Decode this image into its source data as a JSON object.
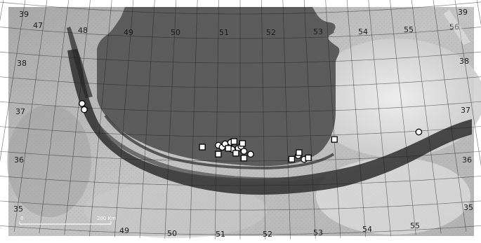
{
  "map": {
    "lon_labels_top": [
      "47",
      "48",
      "49",
      "50",
      "51",
      "52",
      "53",
      "54",
      "55",
      "56"
    ],
    "lon_labels_bottom": [
      "49",
      "50",
      "51",
      "52",
      "53",
      "54",
      "55"
    ],
    "lat_labels_left": [
      "39",
      "38",
      "37",
      "36",
      "35"
    ],
    "lat_labels_right": [
      "39",
      "38",
      "37",
      "36",
      "35"
    ],
    "scale": {
      "zero": "0",
      "dist": "200 Km"
    },
    "colors": {
      "sea": "#5c5c5c",
      "land_dark": "#2b2b2b",
      "land_light": "#bdbdbd",
      "desert": "#e6e6e6"
    },
    "markers": {
      "circles": [
        {
          "lon": 48.07,
          "lat": 37.08
        },
        {
          "lon": 48.13,
          "lat": 36.96
        },
        {
          "lon": 51.04,
          "lat": 36.32
        },
        {
          "lon": 51.12,
          "lat": 36.28
        },
        {
          "lon": 51.18,
          "lat": 36.35
        },
        {
          "lon": 51.3,
          "lat": 36.38
        },
        {
          "lon": 51.33,
          "lat": 36.24
        },
        {
          "lon": 51.46,
          "lat": 36.26
        },
        {
          "lon": 51.52,
          "lat": 36.3
        },
        {
          "lon": 51.58,
          "lat": 36.2
        },
        {
          "lon": 51.72,
          "lat": 36.14
        },
        {
          "lon": 52.72,
          "lat": 36.1
        },
        {
          "lon": 52.84,
          "lat": 36.02
        },
        {
          "lon": 55.3,
          "lat": 36.48
        }
      ],
      "squares": [
        {
          "lon": 50.7,
          "lat": 36.28
        },
        {
          "lon": 51.04,
          "lat": 36.14
        },
        {
          "lon": 51.25,
          "lat": 36.26
        },
        {
          "lon": 51.37,
          "lat": 36.4
        },
        {
          "lon": 51.55,
          "lat": 36.36
        },
        {
          "lon": 51.41,
          "lat": 36.16
        },
        {
          "lon": 51.58,
          "lat": 36.06
        },
        {
          "lon": 52.58,
          "lat": 36.03
        },
        {
          "lon": 52.74,
          "lat": 36.16
        },
        {
          "lon": 52.93,
          "lat": 36.05
        },
        {
          "lon": 53.5,
          "lat": 36.41
        }
      ]
    }
  }
}
